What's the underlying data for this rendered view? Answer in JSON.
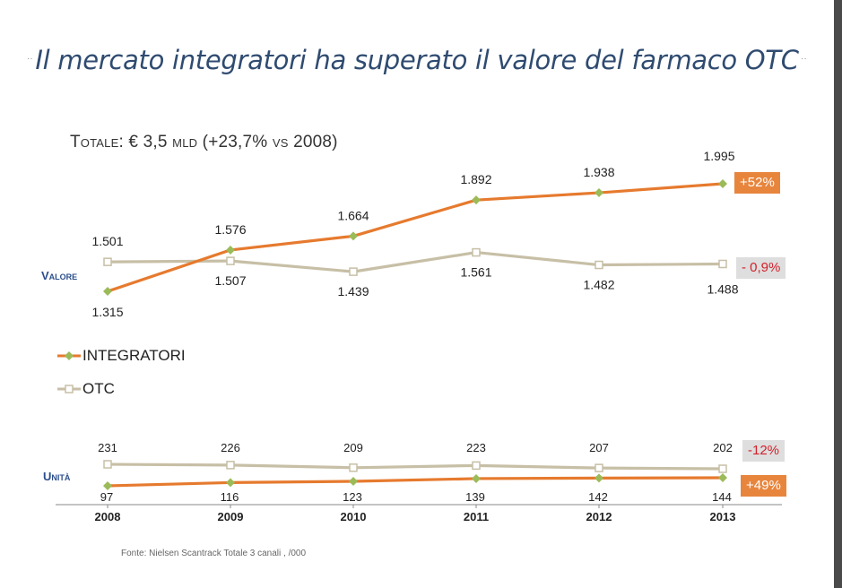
{
  "title": "Il mercato integratori ha superato il valore del farmaco OTC",
  "subtitle": "Totale: € 3,5 mld (+23,7% vs 2008)",
  "labels": {
    "valore": "Valore",
    "unita": "Unità"
  },
  "source": "Fonte: Nielsen Scantrack Totale 3 canali , /000",
  "colors": {
    "integratori": "#e67a2e",
    "otc": "#c7bfa6",
    "marker_integratori": "#9bbb59",
    "title": "#2f4b70",
    "row_label": "#2b4e8c"
  },
  "chart_data": [
    {
      "type": "line",
      "title": "Valore",
      "categories": [
        "2008",
        "2009",
        "2010",
        "2011",
        "2012",
        "2013"
      ],
      "series": [
        {
          "name": "INTEGRATORI",
          "values": [
            1315,
            1576,
            1664,
            1892,
            1938,
            1995
          ],
          "labels": [
            "1.315",
            "1.576",
            "1.664",
            "1.892",
            "1.938",
            "1.995"
          ]
        },
        {
          "name": "OTC",
          "values": [
            1501,
            1507,
            1439,
            1561,
            1482,
            1488
          ],
          "labels": [
            "1.501",
            "1.507",
            "1.439",
            "1.561",
            "1.482",
            "1.488"
          ]
        }
      ],
      "callouts": {
        "INTEGRATORI": "+52%",
        "OTC": "- 0,9%"
      },
      "legend": "left"
    },
    {
      "type": "line",
      "title": "Unità",
      "categories": [
        "2008",
        "2009",
        "2010",
        "2011",
        "2012",
        "2013"
      ],
      "series": [
        {
          "name": "INTEGRATORI",
          "values": [
            97,
            116,
            123,
            139,
            142,
            144
          ],
          "labels": [
            "97",
            "116",
            "123",
            "139",
            "142",
            "144"
          ]
        },
        {
          "name": "OTC",
          "values": [
            231,
            226,
            209,
            223,
            207,
            202
          ],
          "labels": [
            "231",
            "226",
            "209",
            "223",
            "207",
            "202"
          ]
        }
      ],
      "callouts": {
        "OTC": "-12%",
        "INTEGRATORI": "+49%"
      }
    }
  ]
}
